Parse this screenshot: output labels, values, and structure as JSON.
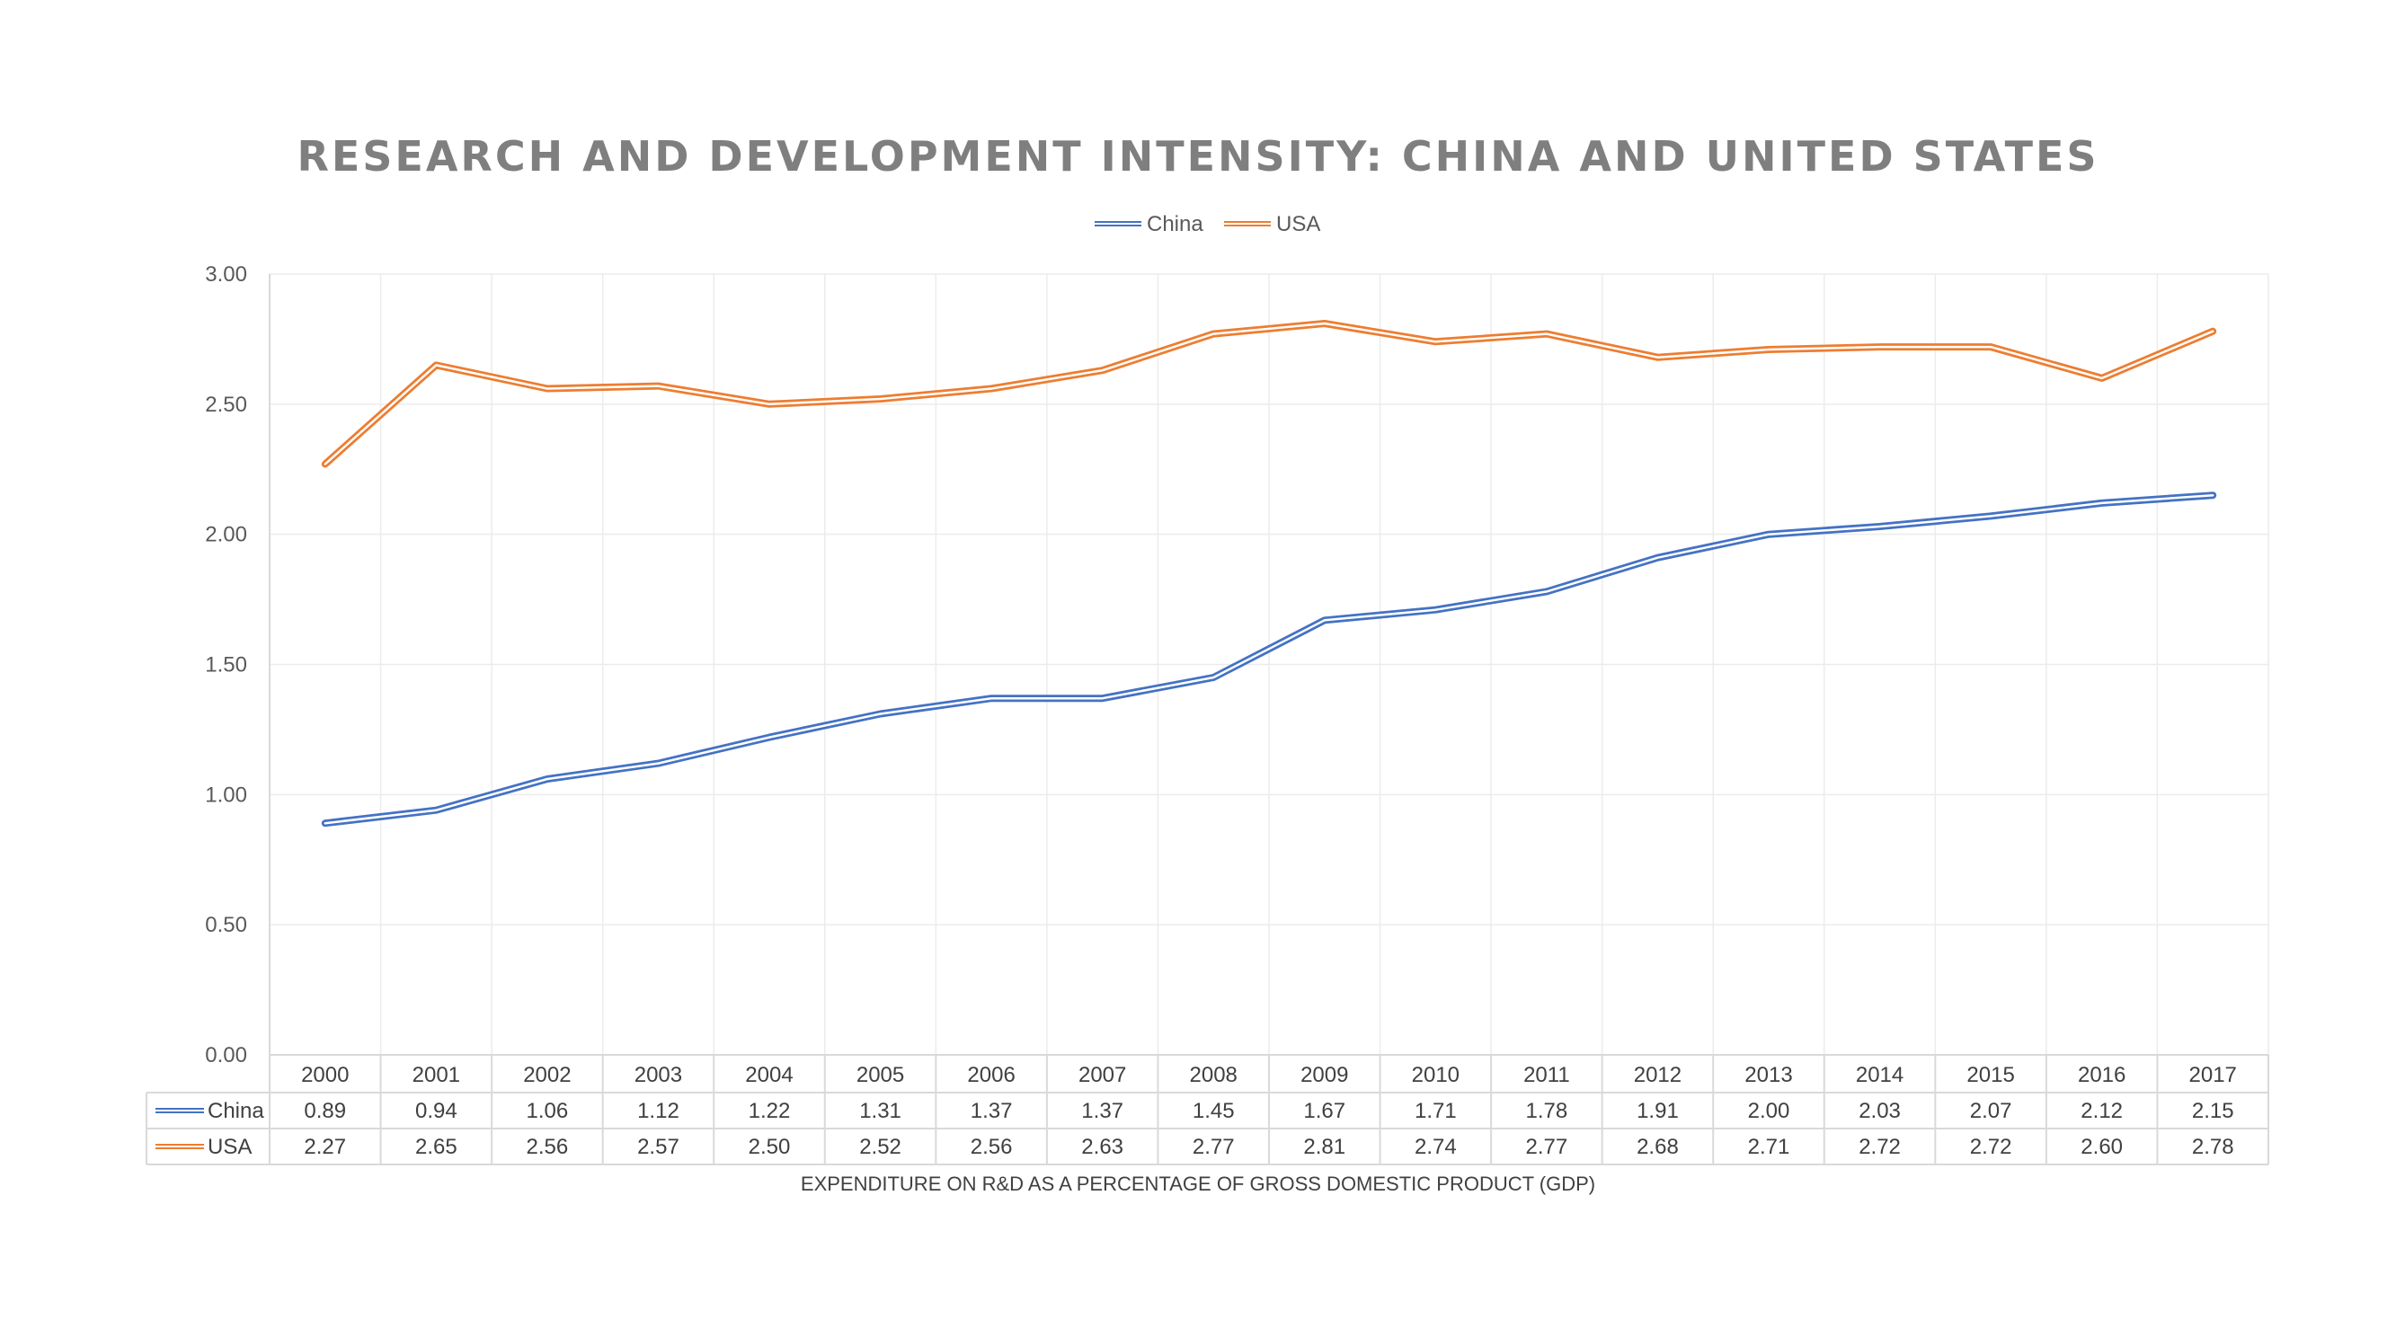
{
  "colors": {
    "china": "#4472c4",
    "usa": "#ed7d31",
    "title": "#7f7f7f",
    "grid": "#ececec",
    "text": "#595959"
  },
  "chart_data": {
    "type": "line",
    "title": "RESEARCH AND DEVELOPMENT INTENSITY: CHINA AND UNITED STATES",
    "xlabel": "EXPENDITURE ON R&D AS A PERCENTAGE OF GROSS DOMESTIC PRODUCT (GDP)",
    "ylabel": "",
    "ylim": [
      0,
      3
    ],
    "y_ticks": [
      "0.00",
      "0.50",
      "1.00",
      "1.50",
      "2.00",
      "2.50",
      "3.00"
    ],
    "grid": true,
    "legend_position": "top-center",
    "data_table": true,
    "categories": [
      "2000",
      "2001",
      "2002",
      "2003",
      "2004",
      "2005",
      "2006",
      "2007",
      "2008",
      "2009",
      "2010",
      "2011",
      "2012",
      "2013",
      "2014",
      "2015",
      "2016",
      "2017"
    ],
    "series": [
      {
        "name": "China",
        "color": "#4472c4",
        "values": [
          0.89,
          0.94,
          1.06,
          1.12,
          1.22,
          1.31,
          1.37,
          1.37,
          1.45,
          1.67,
          1.71,
          1.78,
          1.91,
          2.0,
          2.03,
          2.07,
          2.12,
          2.15
        ],
        "labels": [
          "0.89",
          "0.94",
          "1.06",
          "1.12",
          "1.22",
          "1.31",
          "1.37",
          "1.37",
          "1.45",
          "1.67",
          "1.71",
          "1.78",
          "1.91",
          "2.00",
          "2.03",
          "2.07",
          "2.12",
          "2.15"
        ]
      },
      {
        "name": "USA",
        "color": "#ed7d31",
        "values": [
          2.27,
          2.65,
          2.56,
          2.57,
          2.5,
          2.52,
          2.56,
          2.63,
          2.77,
          2.81,
          2.74,
          2.77,
          2.68,
          2.71,
          2.72,
          2.72,
          2.6,
          2.78
        ],
        "labels": [
          "2.27",
          "2.65",
          "2.56",
          "2.57",
          "2.50",
          "2.52",
          "2.56",
          "2.63",
          "2.77",
          "2.81",
          "2.74",
          "2.77",
          "2.68",
          "2.71",
          "2.72",
          "2.72",
          "2.60",
          "2.78"
        ]
      }
    ]
  }
}
